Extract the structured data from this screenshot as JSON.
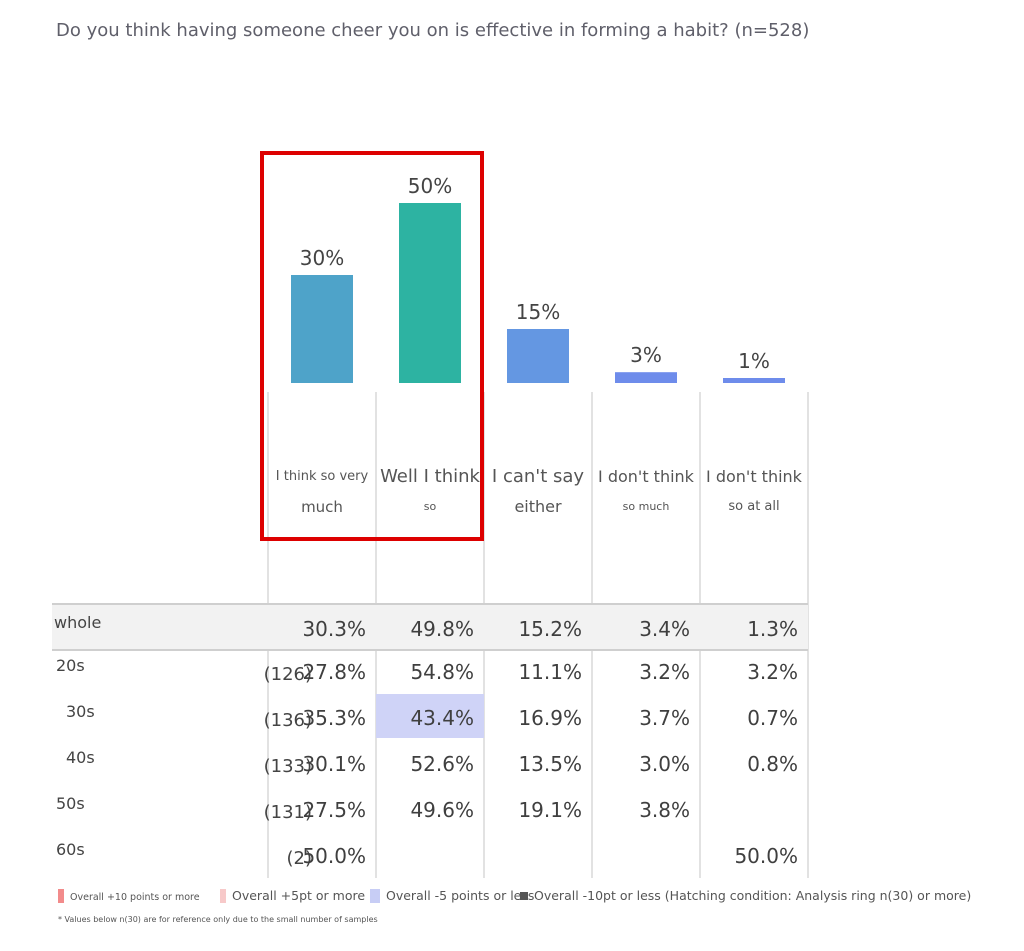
{
  "title": "Do you think having someone cheer you on is effective in forming a habit? (n=528)",
  "chart_data": {
    "type": "bar",
    "categories": [
      [
        "I think so very",
        "much"
      ],
      [
        "Well I think",
        "so"
      ],
      [
        "I can't say",
        "either"
      ],
      [
        "I don't think",
        "so much"
      ],
      [
        "I don't think",
        "so at all"
      ]
    ],
    "values": [
      30,
      50,
      15,
      3,
      1
    ],
    "value_labels": [
      "30%",
      "50%",
      "15%",
      "3%",
      "1%"
    ],
    "colors": [
      "#4ea3c9",
      "#2db3a2",
      "#6497e2",
      "#6e8ceb",
      "#6e8ceb"
    ],
    "highlighted_categories": [
      0,
      1
    ]
  },
  "table": {
    "rows": [
      {
        "label": "whole",
        "n": "",
        "cells": [
          "30.3%",
          "49.8%",
          "15.2%",
          "3.4%",
          "1.3%"
        ]
      },
      {
        "label": "20s",
        "n": "(126)",
        "cells": [
          "27.8%",
          "54.8%",
          "11.1%",
          "3.2%",
          "3.2%"
        ]
      },
      {
        "label": "30s",
        "n": "(136)",
        "cells": [
          "35.3%",
          "43.4%",
          "16.9%",
          "3.7%",
          "0.7%"
        ]
      },
      {
        "label": "40s",
        "n": "(133)",
        "cells": [
          "30.1%",
          "52.6%",
          "13.5%",
          "3.0%",
          "0.8%"
        ]
      },
      {
        "label": "50s",
        "n": "(131)",
        "cells": [
          "27.5%",
          "49.6%",
          "19.1%",
          "3.8%",
          ""
        ]
      },
      {
        "label": "60s",
        "n": "(2)",
        "cells": [
          "50.0%",
          "",
          "",
          "",
          "50.0%"
        ]
      }
    ],
    "highlighted_cell": {
      "row": 2,
      "col": 1,
      "color": "#cfd3f7"
    }
  },
  "legend": {
    "items": [
      {
        "label": "Overall +10 points or more",
        "color": "#f28b8b"
      },
      {
        "label": "Overall +5pt or more",
        "color": "#f7c9c9"
      },
      {
        "label": "Overall -5 points or less",
        "color": "#c7cdf5"
      },
      {
        "label": "Overall -10pt or less (Hatching condition: Analysis ring n(30) or more)",
        "color": "#555555"
      }
    ],
    "note": "* Values below n(30) are for reference only due to the small number of samples"
  }
}
